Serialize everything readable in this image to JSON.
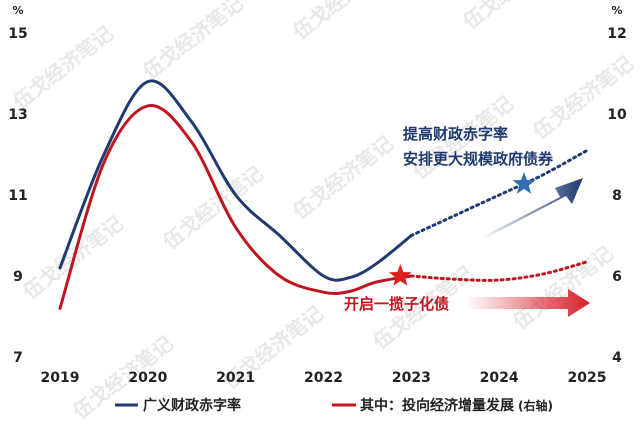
{
  "chart_data": {
    "type": "line",
    "x": [
      "2019",
      "2020",
      "2021",
      "2022",
      "2023",
      "2024",
      "2025"
    ],
    "unit_left": "%",
    "unit_right": "%",
    "y_left": {
      "ticks": [
        7,
        9,
        11,
        13,
        15
      ],
      "lim": [
        7,
        15
      ]
    },
    "y_right": {
      "ticks": [
        4,
        6,
        8,
        10,
        12
      ],
      "lim": [
        4,
        12
      ]
    },
    "series": [
      {
        "name": "广义财政赤字率",
        "axis": "left",
        "color": "#1f3a6e",
        "x": [
          2019.0,
          2019.5,
          2020.0,
          2020.5,
          2021.0,
          2021.5,
          2022.0,
          2022.3,
          2022.6,
          2023.0
        ],
        "y": [
          9.2,
          12.0,
          13.8,
          12.8,
          11.0,
          10.0,
          9.0,
          8.96,
          9.3,
          10.0
        ],
        "projection": {
          "x": [
            2023.0,
            2023.5,
            2024.0,
            2024.5,
            2025.0
          ],
          "y": [
            10.0,
            10.5,
            11.0,
            11.5,
            12.1
          ]
        }
      },
      {
        "name": "其中：投向经济增量发展",
        "name_note": "(右轴)",
        "axis": "right",
        "color": "#c0151e",
        "x": [
          2019.0,
          2019.5,
          2020.0,
          2020.5,
          2021.0,
          2021.5,
          2022.0,
          2022.3,
          2022.6,
          2023.0
        ],
        "y": [
          5.2,
          8.8,
          10.2,
          9.3,
          7.2,
          6.0,
          5.6,
          5.62,
          5.85,
          6.0
        ],
        "projection": {
          "x": [
            2023.0,
            2023.5,
            2024.0,
            2024.5,
            2025.0
          ],
          "y": [
            6.0,
            5.92,
            5.9,
            6.05,
            6.35
          ]
        }
      }
    ],
    "annotations": {
      "blue_line1": "提高财政赤字率",
      "blue_line2": "安排更大规模政府债券",
      "red": "开启一揽子化债"
    }
  },
  "watermark": "伍戈经济笔记",
  "colors": {
    "navy": "#1f3a6e",
    "red": "#c0151e",
    "blue_star": "#2e6fb8",
    "red_star": "#e02020"
  }
}
